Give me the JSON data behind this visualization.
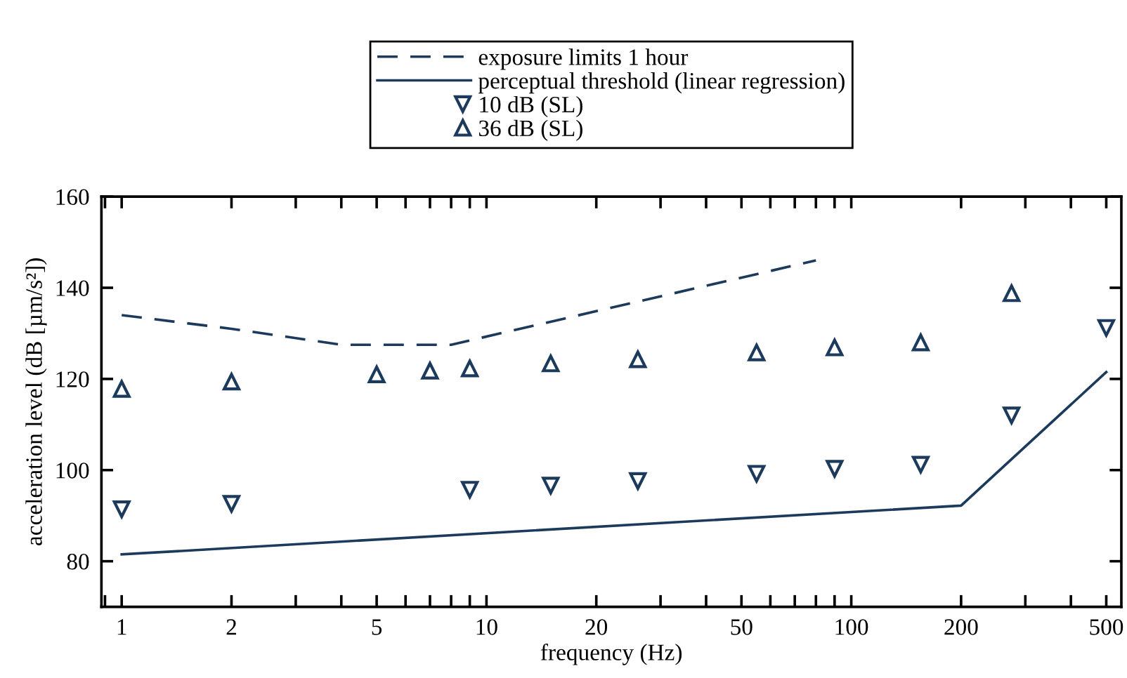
{
  "chart_data": {
    "type": "line",
    "xlabel": "frequency (Hz)",
    "ylabel": "acceleration level (dB [µm/s²])",
    "log": "x",
    "xlim": [
      0.88,
      550
    ],
    "ylim": [
      70,
      160
    ],
    "xticks": [
      {
        "value": 0.9,
        "label": null
      },
      1,
      2,
      {
        "value": 3,
        "label": null
      },
      {
        "value": 4,
        "label": null
      },
      5,
      {
        "value": 6,
        "label": null
      },
      {
        "value": 7,
        "label": null
      },
      {
        "value": 8,
        "label": null
      },
      {
        "value": 9,
        "label": null
      },
      10,
      20,
      {
        "value": 30,
        "label": null
      },
      {
        "value": 40,
        "label": null
      },
      50,
      {
        "value": 60,
        "label": null
      },
      {
        "value": 70,
        "label": null
      },
      {
        "value": 80,
        "label": null
      },
      {
        "value": 90,
        "label": null
      },
      100,
      200,
      {
        "value": 300,
        "label": null
      },
      {
        "value": 400,
        "label": null
      },
      500
    ],
    "yticks": [
      80,
      100,
      120,
      140,
      160
    ],
    "grid": false,
    "legend": "top",
    "series": [
      {
        "name": "exposure limits 1 hour",
        "type": "line",
        "line_style": "dashed",
        "marker": "none",
        "color": "#1b3a5c",
        "x": [
          1,
          2,
          4,
          8,
          80
        ],
        "values": [
          134,
          131,
          127.5,
          127.5,
          146
        ]
      },
      {
        "name": "perceptual threshold (linear regression)",
        "type": "line",
        "line_style": "solid",
        "marker": "none",
        "color": "#1b3a5c",
        "x": [
          1,
          200,
          500
        ],
        "values": [
          81.5,
          92.2,
          121.5
        ]
      },
      {
        "name": "10 dB (SL)",
        "type": "scatter",
        "marker": "triangle_down",
        "color": "#1b3a5c",
        "x": [
          1,
          2,
          9,
          15,
          26,
          55,
          90,
          155,
          275,
          500
        ],
        "values": [
          91.4,
          92.6,
          95.7,
          96.6,
          97.6,
          99.2,
          100.3,
          101.2,
          112,
          131.2
        ]
      },
      {
        "name": "36 dB (SL)",
        "type": "scatter",
        "marker": "triangle",
        "color": "#1b3a5c",
        "x": [
          1,
          2,
          5,
          7,
          9,
          15,
          26,
          55,
          90,
          155,
          275
        ],
        "values": [
          117.8,
          119.4,
          121,
          121.8,
          122.3,
          123.4,
          124.3,
          125.8,
          126.9,
          128,
          138.8
        ]
      }
    ]
  }
}
